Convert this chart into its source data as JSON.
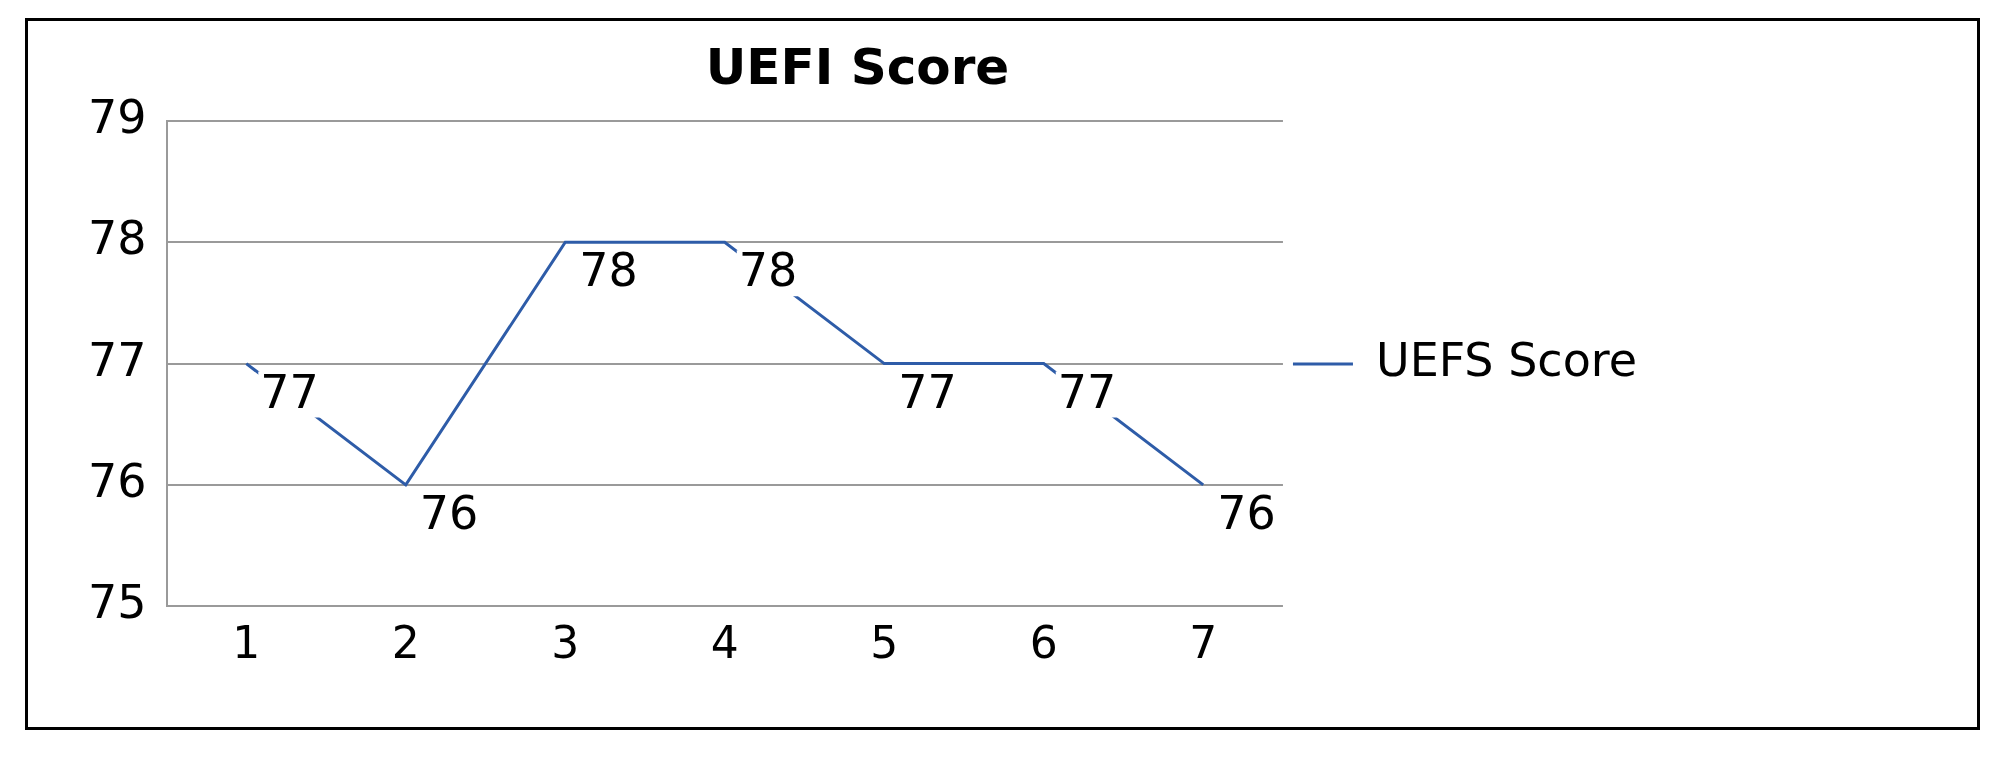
{
  "chart_data": {
    "type": "line",
    "title": "UEFI Score",
    "categories": [
      "1",
      "2",
      "3",
      "4",
      "5",
      "6",
      "7"
    ],
    "series": [
      {
        "name": "UEFS Score",
        "color": "#2e5ca8",
        "values": [
          77,
          76,
          78,
          78,
          77,
          77,
          76
        ]
      }
    ],
    "ylim": [
      75,
      79
    ],
    "yticks": [
      75,
      76,
      77,
      78,
      79
    ],
    "grid": "y",
    "legend": "right",
    "data_labels": true,
    "marker": "none"
  }
}
